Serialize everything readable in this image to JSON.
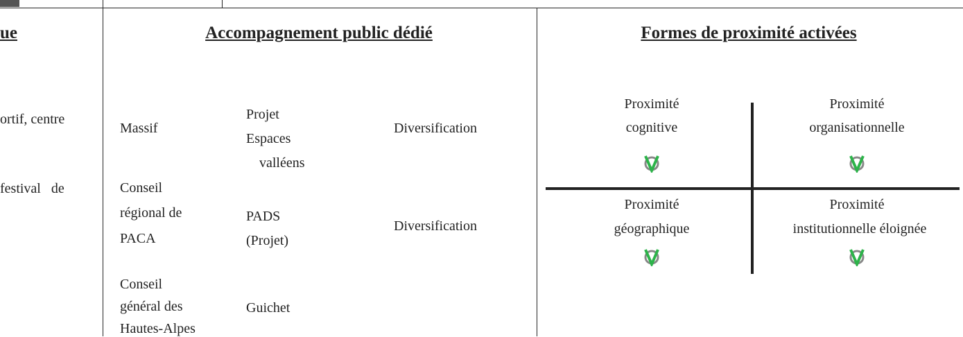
{
  "left_column": {
    "header": "ue",
    "lines": [
      "ortif, centre",
      "festival   de"
    ]
  },
  "middle_column": {
    "header": "Accompagnement public dédié",
    "rows": [
      {
        "actor": [
          "Massif"
        ],
        "project": [
          "Projet",
          "Espaces",
          "valléens"
        ],
        "objective": "Diversification"
      },
      {
        "actor": [
          "Conseil",
          "régional de",
          "PACA"
        ],
        "project": [
          "PADS",
          "(Projet)"
        ],
        "objective": "Diversification"
      },
      {
        "actor": [
          "Conseil",
          "général des",
          "Hautes-Alpes"
        ],
        "project": [
          "Guichet"
        ]
      }
    ]
  },
  "right_column": {
    "header": "Formes de proximité activées",
    "quadrants": [
      {
        "lines": [
          "Proximité",
          "cognitive"
        ]
      },
      {
        "lines": [
          "Proximité",
          "organisationnelle"
        ]
      },
      {
        "lines": [
          "Proximité",
          "géographique"
        ]
      },
      {
        "lines": [
          "Proximité",
          "institutionnelle éloignée"
        ]
      }
    ]
  }
}
